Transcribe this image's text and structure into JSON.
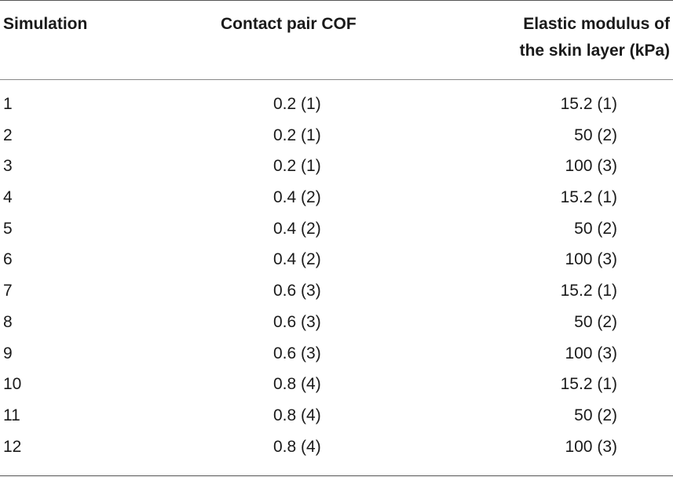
{
  "table": {
    "headers": {
      "simulation": "Simulation",
      "cof": "Contact pair COF",
      "modulus_line1": "Elastic modulus of",
      "modulus_line2": "the skin layer (kPa)"
    },
    "rows": [
      {
        "simulation": "1",
        "cof": "0.2 (1)",
        "modulus": "15.2 (1)"
      },
      {
        "simulation": "2",
        "cof": "0.2 (1)",
        "modulus": "50 (2)"
      },
      {
        "simulation": "3",
        "cof": "0.2 (1)",
        "modulus": "100 (3)"
      },
      {
        "simulation": "4",
        "cof": "0.4 (2)",
        "modulus": "15.2 (1)"
      },
      {
        "simulation": "5",
        "cof": "0.4 (2)",
        "modulus": "50 (2)"
      },
      {
        "simulation": "6",
        "cof": "0.4 (2)",
        "modulus": "100 (3)"
      },
      {
        "simulation": "7",
        "cof": "0.6 (3)",
        "modulus": "15.2 (1)"
      },
      {
        "simulation": "8",
        "cof": "0.6 (3)",
        "modulus": "50 (2)"
      },
      {
        "simulation": "9",
        "cof": "0.6 (3)",
        "modulus": "100 (3)"
      },
      {
        "simulation": "10",
        "cof": "0.8 (4)",
        "modulus": "15.2 (1)"
      },
      {
        "simulation": "11",
        "cof": "0.8 (4)",
        "modulus": "50 (2)"
      },
      {
        "simulation": "12",
        "cof": "0.8 (4)",
        "modulus": "100 (3)"
      }
    ]
  }
}
